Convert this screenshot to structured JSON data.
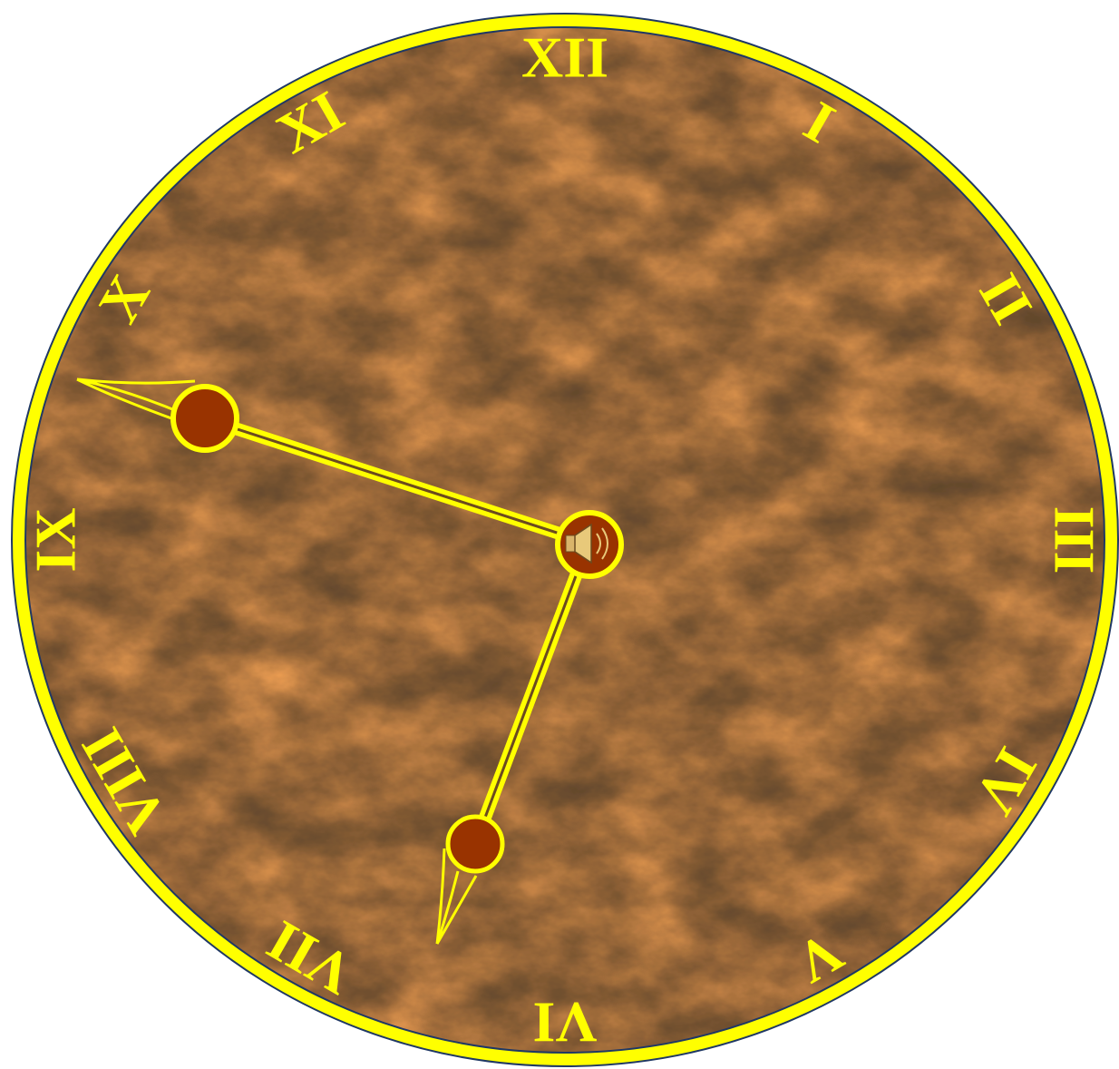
{
  "clock": {
    "numerals": [
      "XII",
      "I",
      "II",
      "III",
      "IV",
      "V",
      "VI",
      "VII",
      "VIII",
      "IX",
      "X",
      "XI"
    ]
  }
}
